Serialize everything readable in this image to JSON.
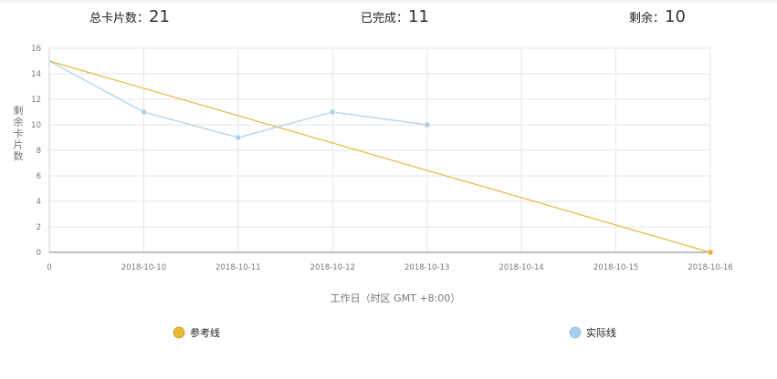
{
  "header": {
    "total_label": "总卡片数：",
    "total_value": "21",
    "done_label": "已完成：",
    "done_value": "11",
    "remaining_label": "剩余：",
    "remaining_value": "10"
  },
  "chart_data": {
    "type": "line",
    "ylabel": "剩余卡片数",
    "xlabel": "工作日（时区 GMT +8:00）",
    "x_ticks": [
      "0",
      "2018-10-10",
      "2018-10-11",
      "2018-10-12",
      "2018-10-13",
      "2018-10-14",
      "2018-10-15",
      "2018-10-16"
    ],
    "ylim": [
      0,
      16
    ],
    "y_ticks": [
      0,
      2,
      4,
      6,
      8,
      10,
      12,
      14,
      16
    ],
    "grid": true,
    "legend_position": "bottom",
    "series": [
      {
        "name": "参考线",
        "color": "#e8b73a",
        "x": [
          "0",
          "2018-10-16"
        ],
        "y": [
          15,
          0
        ],
        "markers": [
          false,
          true
        ]
      },
      {
        "name": "实际线",
        "color": "#a8d0ec",
        "x": [
          "0",
          "2018-10-10",
          "2018-10-11",
          "2018-10-12",
          "2018-10-13"
        ],
        "y": [
          15,
          11,
          9,
          11,
          10
        ],
        "markers": [
          false,
          true,
          true,
          true,
          true
        ]
      }
    ]
  }
}
